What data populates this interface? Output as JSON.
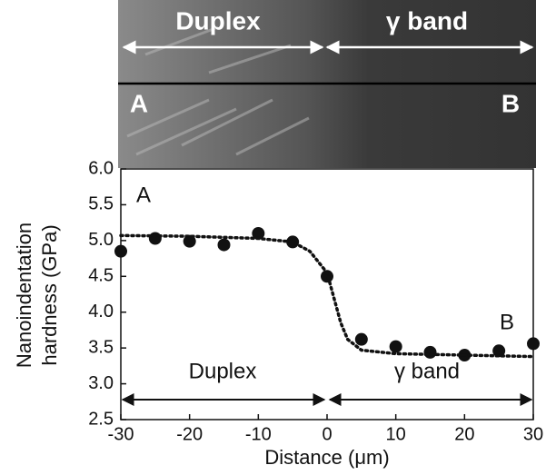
{
  "chart_data": {
    "type": "scatter",
    "xlabel": "Distance (μm)",
    "ylabel": [
      "Nanoindentation",
      "hardness (GPa)"
    ],
    "image_labels": [
      "Duplex",
      "γ band",
      "A",
      "B"
    ],
    "annotations": [
      "A",
      "B",
      "Duplex",
      "γ band"
    ],
    "xlim": [
      -30,
      30
    ],
    "xticks": [
      -30,
      -20,
      -10,
      0,
      10,
      20,
      30
    ],
    "ylim": [
      2.5,
      6.0
    ],
    "yticks": [
      {
        "value": 2.5,
        "label": "2.5"
      },
      {
        "value": 3.0,
        "label": "3.0"
      },
      {
        "value": 3.5,
        "label": "3.5"
      },
      {
        "value": 4.0,
        "label": "4.0"
      },
      {
        "value": 4.5,
        "label": "4.5"
      },
      {
        "value": 5.0,
        "label": "5.0"
      },
      {
        "value": 5.5,
        "label": "5.5"
      },
      {
        "value": 6.0,
        "label": "6.0"
      }
    ],
    "series": [
      {
        "color": "#111111",
        "x": [
          -30,
          -25,
          -20,
          -15,
          -10,
          -5,
          0,
          5,
          10,
          15,
          20,
          25,
          30
        ],
        "values": [
          4.85,
          5.03,
          4.99,
          4.94,
          5.1,
          4.98,
          4.5,
          3.62,
          3.52,
          3.44,
          3.4,
          3.46,
          3.56
        ]
      },
      {
        "color": "#111111",
        "style": "dotted",
        "x": [
          -30,
          -20,
          -10,
          -5,
          -2.5,
          0,
          1,
          2,
          3,
          5,
          10,
          20,
          30
        ],
        "values": [
          5.07,
          5.06,
          5.03,
          4.98,
          4.85,
          4.55,
          4.2,
          3.85,
          3.62,
          3.47,
          3.42,
          3.4,
          3.38
        ]
      }
    ]
  }
}
